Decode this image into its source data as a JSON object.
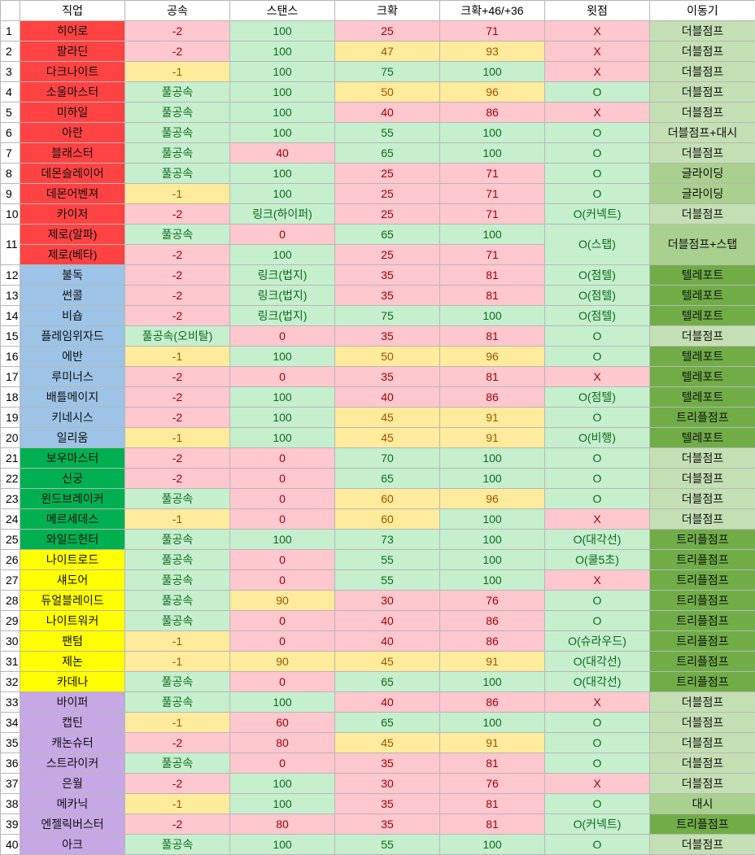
{
  "headers": [
    "직업",
    "공속",
    "스탠스",
    "크확",
    "크확+46/+36",
    "윗점",
    "이동기"
  ],
  "rows": [
    {
      "no": "1",
      "job": "히어로",
      "group": "hero",
      "atk": "-2",
      "atkc": "r",
      "stance": "100",
      "stc": "g",
      "crit": "25",
      "crc": "r",
      "crit2": "71",
      "cr2c": "r",
      "up": "X",
      "upc": "r",
      "move": "더블점프",
      "mvc": "m1"
    },
    {
      "no": "2",
      "job": "팔라딘",
      "group": "hero",
      "atk": "-2",
      "atkc": "r",
      "stance": "100",
      "stc": "g",
      "crit": "47",
      "crc": "y",
      "crit2": "93",
      "cr2c": "y",
      "up": "X",
      "upc": "r",
      "move": "더블점프",
      "mvc": "m1"
    },
    {
      "no": "3",
      "job": "다크나이트",
      "group": "hero",
      "atk": "-1",
      "atkc": "y",
      "stance": "100",
      "stc": "g",
      "crit": "75",
      "crc": "g",
      "crit2": "100",
      "cr2c": "g",
      "up": "X",
      "upc": "r",
      "move": "더블점프",
      "mvc": "m1"
    },
    {
      "no": "4",
      "job": "소울마스터",
      "group": "hero",
      "atk": "풀공속",
      "atkc": "g",
      "stance": "100",
      "stc": "g",
      "crit": "50",
      "crc": "y",
      "crit2": "96",
      "cr2c": "y",
      "up": "O",
      "upc": "g",
      "move": "더블점프",
      "mvc": "m1"
    },
    {
      "no": "5",
      "job": "미하일",
      "group": "hero",
      "atk": "풀공속",
      "atkc": "g",
      "stance": "100",
      "stc": "g",
      "crit": "40",
      "crc": "r",
      "crit2": "86",
      "cr2c": "r",
      "up": "X",
      "upc": "r",
      "move": "더블점프",
      "mvc": "m1"
    },
    {
      "no": "6",
      "job": "아란",
      "group": "hero",
      "atk": "풀공속",
      "atkc": "g",
      "stance": "100",
      "stc": "g",
      "crit": "55",
      "crc": "g",
      "crit2": "100",
      "cr2c": "g",
      "up": "O",
      "upc": "g",
      "move": "더블점프+대시",
      "mvc": "m1"
    },
    {
      "no": "7",
      "job": "블래스터",
      "group": "hero",
      "atk": "풀공속",
      "atkc": "g",
      "stance": "40",
      "stc": "r",
      "crit": "65",
      "crc": "g",
      "crit2": "100",
      "cr2c": "g",
      "up": "O",
      "upc": "g",
      "move": "더블점프",
      "mvc": "m1"
    },
    {
      "no": "8",
      "job": "데몬슬레이어",
      "group": "hero",
      "atk": "풀공속",
      "atkc": "g",
      "stance": "100",
      "stc": "g",
      "crit": "25",
      "crc": "r",
      "crit2": "71",
      "cr2c": "r",
      "up": "O",
      "upc": "g",
      "move": "글라이딩",
      "mvc": "m2"
    },
    {
      "no": "9",
      "job": "데몬어벤져",
      "group": "hero",
      "atk": "-1",
      "atkc": "y",
      "stance": "100",
      "stc": "g",
      "crit": "25",
      "crc": "r",
      "crit2": "71",
      "cr2c": "r",
      "up": "O",
      "upc": "g",
      "move": "글라이딩",
      "mvc": "m2"
    },
    {
      "no": "10",
      "job": "카이저",
      "group": "hero",
      "atk": "-2",
      "atkc": "r",
      "stance": "링크(하이퍼)",
      "stc": "g",
      "crit": "25",
      "crc": "r",
      "crit2": "71",
      "cr2c": "r",
      "up": "O(커넥트)",
      "upc": "g",
      "move": "더블점프",
      "mvc": "m1"
    }
  ],
  "zero": {
    "no": "11",
    "job_a": "제로(알파)",
    "job_b": "제로(베타)",
    "group": "hero",
    "atk_a": "풀공속",
    "atka_c": "g",
    "atk_b": "-2",
    "atkb_c": "r",
    "stance_a": "0",
    "sta_c": "r",
    "stance_b": "100",
    "stb_c": "g",
    "crit_a": "65",
    "cra_c": "g",
    "crit_b": "25",
    "crb_c": "r",
    "crit2_a": "100",
    "cr2a_c": "g",
    "crit2_b": "71",
    "cr2b_c": "r",
    "up": "O(스탭)",
    "upc": "g",
    "move": "더블점프+스탭",
    "mvc": "m2"
  },
  "rows2": [
    {
      "no": "12",
      "job": "불독",
      "group": "mage",
      "atk": "-2",
      "atkc": "r",
      "stance": "링크(법지)",
      "stc": "g",
      "crit": "35",
      "crc": "r",
      "crit2": "81",
      "cr2c": "r",
      "up": "O(점텔)",
      "upc": "g",
      "move": "텔레포트",
      "mvc": "m3"
    },
    {
      "no": "13",
      "job": "썬콜",
      "group": "mage",
      "atk": "-2",
      "atkc": "r",
      "stance": "링크(법지)",
      "stc": "g",
      "crit": "35",
      "crc": "r",
      "crit2": "81",
      "cr2c": "r",
      "up": "O(점텔)",
      "upc": "g",
      "move": "텔레포트",
      "mvc": "m3"
    },
    {
      "no": "14",
      "job": "비숍",
      "group": "mage",
      "atk": "-2",
      "atkc": "r",
      "stance": "링크(법지)",
      "stc": "g",
      "crit": "75",
      "crc": "g",
      "crit2": "100",
      "cr2c": "g",
      "up": "O(점텔)",
      "upc": "g",
      "move": "텔레포트",
      "mvc": "m3"
    },
    {
      "no": "15",
      "job": "플레임위자드",
      "group": "mage",
      "atk": "풀공속(오비탈)",
      "atkc": "g",
      "stance": "0",
      "stc": "r",
      "crit": "35",
      "crc": "r",
      "crit2": "81",
      "cr2c": "r",
      "up": "O",
      "upc": "g",
      "move": "더블점프",
      "mvc": "m1"
    },
    {
      "no": "16",
      "job": "에반",
      "group": "mage",
      "atk": "-1",
      "atkc": "y",
      "stance": "100",
      "stc": "g",
      "crit": "50",
      "crc": "y",
      "crit2": "96",
      "cr2c": "y",
      "up": "O",
      "upc": "g",
      "move": "텔레포트",
      "mvc": "m3"
    },
    {
      "no": "17",
      "job": "루미너스",
      "group": "mage",
      "atk": "-2",
      "atkc": "r",
      "stance": "0",
      "stc": "r",
      "crit": "35",
      "crc": "r",
      "crit2": "81",
      "cr2c": "r",
      "up": "X",
      "upc": "r",
      "move": "텔레포트",
      "mvc": "m3"
    },
    {
      "no": "18",
      "job": "배틀메이지",
      "group": "mage",
      "atk": "-2",
      "atkc": "r",
      "stance": "100",
      "stc": "g",
      "crit": "40",
      "crc": "r",
      "crit2": "86",
      "cr2c": "r",
      "up": "O(점텔)",
      "upc": "g",
      "move": "텔레포트",
      "mvc": "m3"
    },
    {
      "no": "19",
      "job": "키네시스",
      "group": "mage",
      "atk": "-2",
      "atkc": "r",
      "stance": "100",
      "stc": "g",
      "crit": "45",
      "crc": "y",
      "crit2": "91",
      "cr2c": "y",
      "up": "O",
      "upc": "g",
      "move": "트리플점프",
      "mvc": "m3"
    },
    {
      "no": "20",
      "job": "일리움",
      "group": "mage",
      "atk": "-1",
      "atkc": "y",
      "stance": "100",
      "stc": "g",
      "crit": "45",
      "crc": "y",
      "crit2": "91",
      "cr2c": "y",
      "up": "O(비행)",
      "upc": "g",
      "move": "텔레포트",
      "mvc": "m3"
    },
    {
      "no": "21",
      "job": "보우마스터",
      "group": "archer",
      "atk": "-2",
      "atkc": "r",
      "stance": "0",
      "stc": "r",
      "crit": "70",
      "crc": "g",
      "crit2": "100",
      "cr2c": "g",
      "up": "O",
      "upc": "g",
      "move": "더블점프",
      "mvc": "m1"
    },
    {
      "no": "22",
      "job": "신궁",
      "group": "archer",
      "atk": "-2",
      "atkc": "r",
      "stance": "0",
      "stc": "r",
      "crit": "65",
      "crc": "g",
      "crit2": "100",
      "cr2c": "g",
      "up": "O",
      "upc": "g",
      "move": "더블점프",
      "mvc": "m1"
    },
    {
      "no": "23",
      "job": "윈드브레이커",
      "group": "archer",
      "atk": "풀공속",
      "atkc": "g",
      "stance": "0",
      "stc": "r",
      "crit": "60",
      "crc": "y",
      "crit2": "96",
      "cr2c": "y",
      "up": "O",
      "upc": "g",
      "move": "더블점프",
      "mvc": "m1"
    },
    {
      "no": "24",
      "job": "메르세데스",
      "group": "archer",
      "atk": "-1",
      "atkc": "y",
      "stance": "0",
      "stc": "r",
      "crit": "60",
      "crc": "y",
      "crit2": "100",
      "cr2c": "g",
      "up": "X",
      "upc": "r",
      "move": "더블점프",
      "mvc": "m1"
    },
    {
      "no": "25",
      "job": "와일드헌터",
      "group": "archer",
      "atk": "풀공속",
      "atkc": "g",
      "stance": "100",
      "stc": "g",
      "crit": "73",
      "crc": "g",
      "crit2": "100",
      "cr2c": "g",
      "up": "O(대각선)",
      "upc": "g",
      "move": "트리플점프",
      "mvc": "m3"
    },
    {
      "no": "26",
      "job": "나이트로드",
      "group": "thief",
      "atk": "풀공속",
      "atkc": "g",
      "stance": "0",
      "stc": "r",
      "crit": "55",
      "crc": "g",
      "crit2": "100",
      "cr2c": "g",
      "up": "O(쿨5초)",
      "upc": "g",
      "move": "트리플점프",
      "mvc": "m3"
    },
    {
      "no": "27",
      "job": "섀도어",
      "group": "thief",
      "atk": "풀공속",
      "atkc": "g",
      "stance": "0",
      "stc": "r",
      "crit": "55",
      "crc": "g",
      "crit2": "100",
      "cr2c": "g",
      "up": "X",
      "upc": "r",
      "move": "트리플점프",
      "mvc": "m3"
    },
    {
      "no": "28",
      "job": "듀얼블레이드",
      "group": "thief",
      "atk": "풀공속",
      "atkc": "g",
      "stance": "90",
      "stc": "y",
      "crit": "30",
      "crc": "r",
      "crit2": "76",
      "cr2c": "r",
      "up": "O",
      "upc": "g",
      "move": "트리플점프",
      "mvc": "m3"
    },
    {
      "no": "29",
      "job": "나이트워커",
      "group": "thief",
      "atk": "풀공속",
      "atkc": "g",
      "stance": "0",
      "stc": "r",
      "crit": "40",
      "crc": "r",
      "crit2": "86",
      "cr2c": "r",
      "up": "O",
      "upc": "g",
      "move": "트리플점프",
      "mvc": "m3"
    },
    {
      "no": "30",
      "job": "팬텀",
      "group": "thief",
      "atk": "-1",
      "atkc": "y",
      "stance": "0",
      "stc": "r",
      "crit": "40",
      "crc": "r",
      "crit2": "86",
      "cr2c": "r",
      "up": "O(슈라우드)",
      "upc": "g",
      "move": "트리플점프",
      "mvc": "m3"
    },
    {
      "no": "31",
      "job": "제논",
      "group": "thief",
      "atk": "-1",
      "atkc": "y",
      "stance": "90",
      "stc": "y",
      "crit": "45",
      "crc": "y",
      "crit2": "91",
      "cr2c": "y",
      "up": "O(대각선)",
      "upc": "g",
      "move": "트리플점프",
      "mvc": "m3"
    },
    {
      "no": "32",
      "job": "카데나",
      "group": "thief",
      "atk": "풀공속",
      "atkc": "g",
      "stance": "0",
      "stc": "r",
      "crit": "65",
      "crc": "g",
      "crit2": "100",
      "cr2c": "g",
      "up": "O(대각선)",
      "upc": "g",
      "move": "트리플점프",
      "mvc": "m3"
    },
    {
      "no": "33",
      "job": "바이퍼",
      "group": "pirate",
      "atk": "풀공속",
      "atkc": "g",
      "stance": "100",
      "stc": "g",
      "crit": "40",
      "crc": "r",
      "crit2": "86",
      "cr2c": "r",
      "up": "X",
      "upc": "r",
      "move": "더블점프",
      "mvc": "m1"
    },
    {
      "no": "34",
      "job": "캡틴",
      "group": "pirate",
      "atk": "-1",
      "atkc": "y",
      "stance": "60",
      "stc": "r",
      "crit": "65",
      "crc": "g",
      "crit2": "100",
      "cr2c": "g",
      "up": "O",
      "upc": "g",
      "move": "더블점프",
      "mvc": "m1"
    },
    {
      "no": "35",
      "job": "캐논슈터",
      "group": "pirate",
      "atk": "-2",
      "atkc": "r",
      "stance": "80",
      "stc": "r",
      "crit": "45",
      "crc": "y",
      "crit2": "91",
      "cr2c": "y",
      "up": "O",
      "upc": "g",
      "move": "더블점프",
      "mvc": "m1"
    },
    {
      "no": "36",
      "job": "스트라이커",
      "group": "pirate",
      "atk": "풀공속",
      "atkc": "g",
      "stance": "0",
      "stc": "r",
      "crit": "35",
      "crc": "r",
      "crit2": "81",
      "cr2c": "r",
      "up": "O",
      "upc": "g",
      "move": "더블점프",
      "mvc": "m1"
    },
    {
      "no": "37",
      "job": "은월",
      "group": "pirate",
      "atk": "-2",
      "atkc": "r",
      "stance": "100",
      "stc": "g",
      "crit": "30",
      "crc": "r",
      "crit2": "76",
      "cr2c": "r",
      "up": "X",
      "upc": "r",
      "move": "더블점프",
      "mvc": "m1"
    },
    {
      "no": "38",
      "job": "메카닉",
      "group": "pirate",
      "atk": "-1",
      "atkc": "y",
      "stance": "100",
      "stc": "g",
      "crit": "35",
      "crc": "r",
      "crit2": "81",
      "cr2c": "r",
      "up": "O",
      "upc": "g",
      "move": "대시",
      "mvc": "m2"
    },
    {
      "no": "39",
      "job": "엔젤릭버스터",
      "group": "pirate",
      "atk": "-2",
      "atkc": "r",
      "stance": "80",
      "stc": "r",
      "crit": "35",
      "crc": "r",
      "crit2": "81",
      "cr2c": "r",
      "up": "O(커넥트)",
      "upc": "g",
      "move": "트리플점프",
      "mvc": "m3"
    },
    {
      "no": "40",
      "job": "아크",
      "group": "pirate",
      "atk": "풀공속",
      "atkc": "g",
      "stance": "100",
      "stc": "g",
      "crit": "55",
      "crc": "g",
      "crit2": "100",
      "cr2c": "g",
      "up": "O",
      "upc": "g",
      "move": "더블점프",
      "mvc": "m1"
    }
  ]
}
